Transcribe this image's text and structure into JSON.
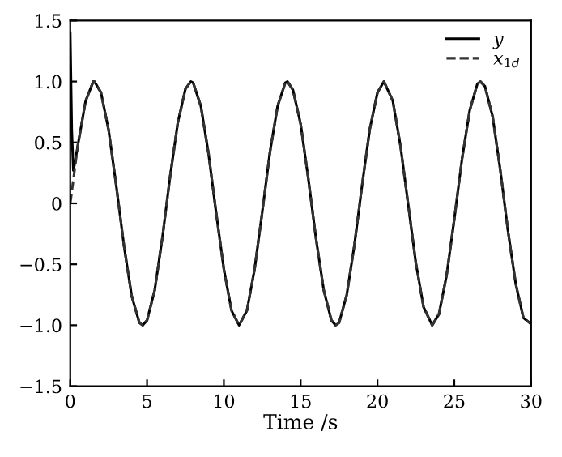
{
  "chart_data": {
    "type": "line",
    "xlabel": "Time /s",
    "xlim": [
      0,
      30
    ],
    "ylim": [
      -1.5,
      1.5
    ],
    "xticks": [
      0,
      5,
      10,
      15,
      20,
      25,
      30
    ],
    "yticks": [
      {
        "value": -1.5,
        "label": "−1.5"
      },
      {
        "value": -1.0,
        "label": "−1.0"
      },
      {
        "value": -0.5,
        "label": "−0.5"
      },
      0,
      0.5,
      {
        "value": 1.0,
        "label": "1.0"
      },
      1.5
    ],
    "grid": false,
    "legend": "top right",
    "marker": "none",
    "series": [
      {
        "name": "y",
        "color": "#000000",
        "line_style": "solid",
        "x": [
          0,
          0.1,
          0.2,
          0.3,
          0.5,
          1,
          1.5,
          1.57,
          2,
          2.5,
          3,
          3.5,
          4,
          4.5,
          4.71,
          5,
          5.5,
          6,
          6.5,
          7,
          7.5,
          7.85,
          8,
          8.5,
          9,
          9.5,
          10,
          10.5,
          10.99,
          11.5,
          12,
          12.5,
          13,
          13.5,
          14,
          14.14,
          14.5,
          15,
          15.5,
          16,
          16.5,
          17,
          17.28,
          17.5,
          18,
          18.5,
          19,
          19.5,
          20,
          20.42,
          21,
          21.5,
          22,
          22.5,
          23,
          23.56,
          24,
          24.5,
          25,
          25.5,
          26,
          26.5,
          26.7,
          27,
          27.5,
          28,
          28.5,
          29,
          29.5,
          30
        ],
        "values": [
          1.4,
          0.6,
          0.27,
          0.33,
          0.48,
          0.84,
          1.0,
          1,
          0.91,
          0.6,
          0.14,
          -0.35,
          -0.76,
          -0.98,
          -1,
          -0.96,
          -0.71,
          -0.28,
          0.22,
          0.66,
          0.94,
          1,
          0.99,
          0.8,
          0.41,
          -0.08,
          -0.54,
          -0.88,
          -1,
          -0.88,
          -0.54,
          -0.07,
          0.42,
          0.8,
          0.99,
          1,
          0.93,
          0.65,
          0.2,
          -0.29,
          -0.71,
          -0.96,
          -1,
          -0.98,
          -0.75,
          -0.34,
          0.15,
          0.61,
          0.91,
          1,
          0.84,
          0.47,
          -0.01,
          -0.49,
          -0.85,
          -1,
          -0.91,
          -0.59,
          -0.13,
          0.36,
          0.76,
          0.98,
          1,
          0.96,
          0.71,
          0.27,
          -0.23,
          -0.66,
          -0.94,
          -0.99
        ]
      },
      {
        "name": "x$_{1d}$",
        "color": "#333333",
        "line_style": "dashed",
        "x": [
          0,
          0.5,
          1,
          1.5,
          1.57,
          2,
          2.5,
          3,
          3.5,
          4,
          4.5,
          4.71,
          5,
          5.5,
          6,
          6.5,
          7,
          7.5,
          7.85,
          8,
          8.5,
          9,
          9.5,
          10,
          10.5,
          10.99,
          11.5,
          12,
          12.5,
          13,
          13.5,
          14,
          14.14,
          14.5,
          15,
          15.5,
          16,
          16.5,
          17,
          17.28,
          17.5,
          18,
          18.5,
          19,
          19.5,
          20,
          20.42,
          21,
          21.5,
          22,
          22.5,
          23,
          23.56,
          24,
          24.5,
          25,
          25.5,
          26,
          26.5,
          26.7,
          27,
          27.5,
          28,
          28.5,
          29,
          29.5,
          30
        ],
        "values": [
          0,
          0.48,
          0.84,
          1.0,
          1,
          0.91,
          0.6,
          0.14,
          -0.35,
          -0.76,
          -0.98,
          -1,
          -0.96,
          -0.71,
          -0.28,
          0.22,
          0.66,
          0.94,
          1,
          0.99,
          0.8,
          0.41,
          -0.08,
          -0.54,
          -0.88,
          -1,
          -0.88,
          -0.54,
          -0.07,
          0.42,
          0.8,
          0.99,
          1,
          0.93,
          0.65,
          0.2,
          -0.29,
          -0.71,
          -0.96,
          -1,
          -0.98,
          -0.75,
          -0.34,
          0.15,
          0.61,
          0.91,
          1,
          0.84,
          0.47,
          -0.01,
          -0.49,
          -0.85,
          -1,
          -0.91,
          -0.59,
          -0.13,
          0.36,
          0.76,
          0.98,
          1,
          0.96,
          0.71,
          0.27,
          -0.23,
          -0.66,
          -0.94,
          -0.99
        ]
      }
    ]
  }
}
